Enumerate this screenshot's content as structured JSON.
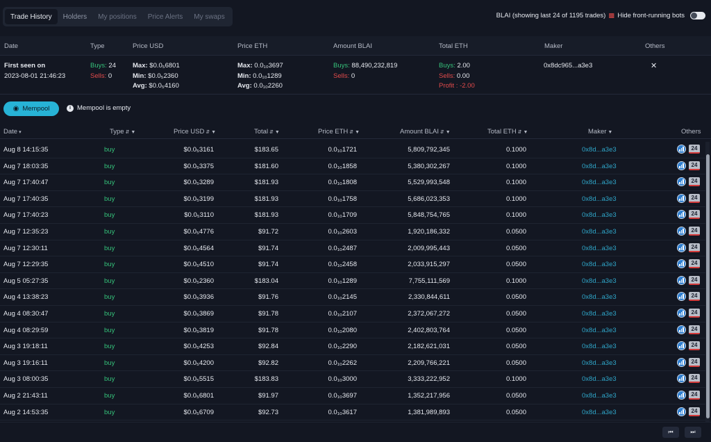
{
  "tabs": [
    {
      "label": "Trade History"
    },
    {
      "label": "Holders"
    },
    {
      "label": "My positions"
    },
    {
      "label": "Price Alerts"
    },
    {
      "label": "My swaps"
    }
  ],
  "status_text": "BLAI (showing last 24 of 1195 trades)",
  "hide_bots_label": "Hide front-running bots",
  "summary_headers": [
    "Date",
    "Type",
    "Price USD",
    "Price ETH",
    "Amount BLAI",
    "Total ETH",
    "Maker",
    "Others"
  ],
  "summary": {
    "first_seen_label": "First seen on",
    "first_seen_date": "2023-08-01 21:46:23",
    "buys_label": "Buys:",
    "buys_value": "24",
    "sells_label": "Sells:",
    "sells_value": "0",
    "max_label": "Max:",
    "min_label": "Min:",
    "avg_label": "Avg:",
    "usd_max": "$0.0₅6801",
    "usd_min": "$0.0₅2360",
    "usd_avg": "$0.0₅4160",
    "eth_max": "0.0₁₀3697",
    "eth_min": "0.0₁₀1289",
    "eth_avg": "0.0₁₀2260",
    "amount_buys": "88,490,232,819",
    "amount_sells": "0",
    "total_buys": "2.00",
    "total_sells": "0.00",
    "profit_label": "Profit :",
    "profit_value": "-2.00",
    "maker": "0x8dc965...a3e3",
    "others_icon": "close-icon"
  },
  "mempool": {
    "button_label": "Mempool",
    "status": "Mempool is empty"
  },
  "table": {
    "headers": {
      "date": "Date",
      "type": "Type",
      "price_usd": "Price USD",
      "total": "Total",
      "price_eth": "Price ETH",
      "amount": "Amount BLAI",
      "total_eth": "Total ETH",
      "maker": "Maker",
      "others": "Others"
    },
    "rows": [
      {
        "date": "Aug 8 14:15:35",
        "type": "buy",
        "usd": "$0.0₅3161",
        "total": "$183.65",
        "eth": "0.0₁₀1721",
        "amount": "5,809,792,345",
        "teth": "0.1000",
        "maker": "0x8d...a3e3",
        "badge": "24"
      },
      {
        "date": "Aug 7 18:03:35",
        "type": "buy",
        "usd": "$0.0₅3375",
        "total": "$181.60",
        "eth": "0.0₁₀1858",
        "amount": "5,380,302,267",
        "teth": "0.1000",
        "maker": "0x8d...a3e3",
        "badge": "24"
      },
      {
        "date": "Aug 7 17:40:47",
        "type": "buy",
        "usd": "$0.0₅3289",
        "total": "$181.93",
        "eth": "0.0₁₀1808",
        "amount": "5,529,993,548",
        "teth": "0.1000",
        "maker": "0x8d...a3e3",
        "badge": "24"
      },
      {
        "date": "Aug 7 17:40:35",
        "type": "buy",
        "usd": "$0.0₅3199",
        "total": "$181.93",
        "eth": "0.0₁₀1758",
        "amount": "5,686,023,353",
        "teth": "0.1000",
        "maker": "0x8d...a3e3",
        "badge": "24"
      },
      {
        "date": "Aug 7 17:40:23",
        "type": "buy",
        "usd": "$0.0₅3110",
        "total": "$181.93",
        "eth": "0.0₁₀1709",
        "amount": "5,848,754,765",
        "teth": "0.1000",
        "maker": "0x8d...a3e3",
        "badge": "24"
      },
      {
        "date": "Aug 7 12:35:23",
        "type": "buy",
        "usd": "$0.0₅4776",
        "total": "$91.72",
        "eth": "0.0₁₀2603",
        "amount": "1,920,186,332",
        "teth": "0.0500",
        "maker": "0x8d...a3e3",
        "badge": "24"
      },
      {
        "date": "Aug 7 12:30:11",
        "type": "buy",
        "usd": "$0.0₅4564",
        "total": "$91.74",
        "eth": "0.0₁₀2487",
        "amount": "2,009,995,443",
        "teth": "0.0500",
        "maker": "0x8d...a3e3",
        "badge": "24"
      },
      {
        "date": "Aug 7 12:29:35",
        "type": "buy",
        "usd": "$0.0₅4510",
        "total": "$91.74",
        "eth": "0.0₁₀2458",
        "amount": "2,033,915,297",
        "teth": "0.0500",
        "maker": "0x8d...a3e3",
        "badge": "24"
      },
      {
        "date": "Aug 5 05:27:35",
        "type": "buy",
        "usd": "$0.0₅2360",
        "total": "$183.04",
        "eth": "0.0₁₀1289",
        "amount": "7,755,111,569",
        "teth": "0.1000",
        "maker": "0x8d...a3e3",
        "badge": "24"
      },
      {
        "date": "Aug 4 13:38:23",
        "type": "buy",
        "usd": "$0.0₅3936",
        "total": "$91.76",
        "eth": "0.0₁₀2145",
        "amount": "2,330,844,611",
        "teth": "0.0500",
        "maker": "0x8d...a3e3",
        "badge": "24"
      },
      {
        "date": "Aug 4 08:30:47",
        "type": "buy",
        "usd": "$0.0₅3869",
        "total": "$91.78",
        "eth": "0.0₁₀2107",
        "amount": "2,372,067,272",
        "teth": "0.0500",
        "maker": "0x8d...a3e3",
        "badge": "24"
      },
      {
        "date": "Aug 4 08:29:59",
        "type": "buy",
        "usd": "$0.0₅3819",
        "total": "$91.78",
        "eth": "0.0₁₀2080",
        "amount": "2,402,803,764",
        "teth": "0.0500",
        "maker": "0x8d...a3e3",
        "badge": "24"
      },
      {
        "date": "Aug 3 19:18:11",
        "type": "buy",
        "usd": "$0.0₅4253",
        "total": "$92.84",
        "eth": "0.0₁₀2290",
        "amount": "2,182,621,031",
        "teth": "0.0500",
        "maker": "0x8d...a3e3",
        "badge": "24"
      },
      {
        "date": "Aug 3 19:16:11",
        "type": "buy",
        "usd": "$0.0₅4200",
        "total": "$92.82",
        "eth": "0.0₁₀2262",
        "amount": "2,209,766,221",
        "teth": "0.0500",
        "maker": "0x8d...a3e3",
        "badge": "24"
      },
      {
        "date": "Aug 3 08:00:35",
        "type": "buy",
        "usd": "$0.0₅5515",
        "total": "$183.83",
        "eth": "0.0₁₀3000",
        "amount": "3,333,222,952",
        "teth": "0.1000",
        "maker": "0x8d...a3e3",
        "badge": "24"
      },
      {
        "date": "Aug 2 21:43:11",
        "type": "buy",
        "usd": "$0.0₅6801",
        "total": "$91.97",
        "eth": "0.0₁₀3697",
        "amount": "1,352,217,956",
        "teth": "0.0500",
        "maker": "0x8d...a3e3",
        "badge": "24"
      },
      {
        "date": "Aug 2 14:53:35",
        "type": "buy",
        "usd": "$0.0₅6709",
        "total": "$92.73",
        "eth": "0.0₁₀3617",
        "amount": "1,381,989,893",
        "teth": "0.0500",
        "maker": "0x8d...a3e3",
        "badge": "24"
      }
    ]
  },
  "pager": {
    "prev": "⏮",
    "next": "⏭"
  }
}
